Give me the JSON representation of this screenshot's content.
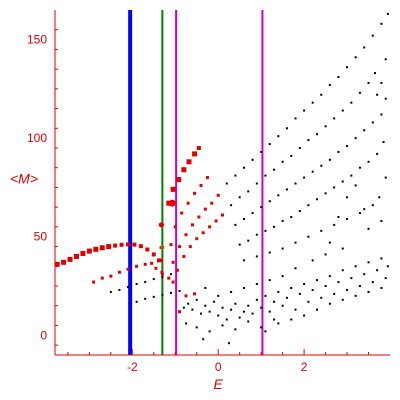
{
  "chart_data": {
    "type": "scatter",
    "xlabel": "E",
    "ylabel": "<M>",
    "xlim": [
      -3.8,
      4.0
    ],
    "ylim": [
      -10,
      165
    ],
    "x_ticks": [
      -2,
      0,
      2
    ],
    "x_tick_labels": [
      "-2",
      "0",
      "2"
    ],
    "y_ticks": [
      0,
      50,
      100,
      150
    ],
    "y_tick_labels": [
      "0",
      "50",
      "100",
      "150"
    ],
    "grid": false,
    "colors": {
      "axis": "#e00000",
      "red_points": "#e00000",
      "black_points": "#000000",
      "blue_line": "#0000ff",
      "green_line": "#008000",
      "magenta_line": "#cc00cc"
    },
    "vertical_lines": [
      {
        "x": -2.05,
        "color": "#0000ff",
        "width": 4
      },
      {
        "x": -1.3,
        "color": "#008000",
        "width": 2
      },
      {
        "x": -0.98,
        "color": "#cc00cc",
        "width": 2
      },
      {
        "x": 1.03,
        "color": "#cc00cc",
        "width": 2
      }
    ],
    "red_points": [
      [
        -3.75,
        36,
        5
      ],
      [
        -3.6,
        37,
        5
      ],
      [
        -3.45,
        38.5,
        5
      ],
      [
        -3.3,
        40,
        5
      ],
      [
        -3.15,
        41.5,
        5
      ],
      [
        -3.0,
        42.7,
        5
      ],
      [
        -2.85,
        43.6,
        5
      ],
      [
        -2.7,
        44.4,
        5
      ],
      [
        -2.55,
        45.0,
        5
      ],
      [
        -2.4,
        45.5,
        4
      ],
      [
        -2.25,
        45.9,
        4
      ],
      [
        -2.1,
        46.1,
        4
      ],
      [
        -1.95,
        46.0,
        4
      ],
      [
        -1.8,
        45.2,
        4
      ],
      [
        -1.65,
        43.5,
        4
      ],
      [
        -1.5,
        41.0,
        4
      ],
      [
        -1.38,
        38.0,
        4
      ],
      [
        -1.33,
        44.5,
        3
      ],
      [
        -1.32,
        38,
        3
      ],
      [
        -1.31,
        32,
        3
      ],
      [
        -1.35,
        56,
        3
      ],
      [
        -1.15,
        67,
        5
      ],
      [
        -1.05,
        74,
        5
      ],
      [
        -0.92,
        79,
        5
      ],
      [
        -0.8,
        84,
        5
      ],
      [
        -0.68,
        88,
        5
      ],
      [
        -0.55,
        92,
        5
      ],
      [
        -0.45,
        95,
        4
      ],
      [
        -1.1,
        46,
        3
      ],
      [
        -1.0,
        55,
        3
      ],
      [
        -0.85,
        62,
        3
      ],
      [
        -0.7,
        67,
        3
      ],
      [
        -0.55,
        72,
        3
      ],
      [
        -0.4,
        76,
        3
      ],
      [
        -0.25,
        80,
        3
      ],
      [
        -1.05,
        37,
        3
      ],
      [
        -0.9,
        45,
        3
      ],
      [
        -0.75,
        51,
        3
      ],
      [
        -0.6,
        56,
        3
      ],
      [
        -0.45,
        60,
        3
      ],
      [
        -0.3,
        64,
        3
      ],
      [
        -0.15,
        67,
        3
      ],
      [
        0.0,
        71,
        3
      ],
      [
        -0.95,
        33,
        3
      ],
      [
        -0.8,
        40,
        3
      ],
      [
        -0.65,
        45,
        3
      ],
      [
        -0.5,
        49,
        3
      ],
      [
        -0.35,
        52,
        3
      ],
      [
        -0.2,
        55,
        3
      ],
      [
        -0.05,
        58,
        3
      ],
      [
        0.1,
        61,
        3
      ],
      [
        -2.9,
        27,
        3
      ],
      [
        -2.7,
        29,
        3
      ],
      [
        -2.5,
        30,
        3
      ],
      [
        -2.3,
        32,
        3
      ],
      [
        -2.1,
        33.5,
        3
      ],
      [
        -1.9,
        35,
        3
      ],
      [
        -1.7,
        36,
        3
      ],
      [
        -1.55,
        36.5,
        3
      ],
      [
        -1.45,
        34,
        3
      ],
      [
        -1.3,
        31,
        3
      ],
      [
        -1.15,
        29,
        3
      ],
      [
        -1.05,
        27,
        3
      ],
      [
        -0.75,
        20,
        3
      ],
      [
        -0.55,
        21,
        3
      ],
      [
        -0.9,
        12,
        3
      ]
    ],
    "big_markers": [
      [
        -1.07,
        67,
        "#e00000",
        7
      ],
      [
        -1.32,
        56,
        "#e00000",
        5
      ],
      [
        -1.3,
        44.5,
        "#996600",
        4
      ]
    ],
    "black_points": [
      [
        -2.5,
        22
      ],
      [
        -2.3,
        23
      ],
      [
        -2.1,
        24.5
      ],
      [
        -1.9,
        26
      ],
      [
        -1.7,
        27
      ],
      [
        -1.5,
        28.5
      ],
      [
        -1.3,
        29.5
      ],
      [
        -1.1,
        31
      ],
      [
        -1.9,
        17
      ],
      [
        -1.7,
        18.5
      ],
      [
        -1.5,
        19.5
      ],
      [
        -1.3,
        20.5
      ],
      [
        -1.1,
        21.5
      ],
      [
        -0.9,
        22.5
      ],
      [
        0.2,
        77
      ],
      [
        0.4,
        81
      ],
      [
        0.6,
        85
      ],
      [
        0.8,
        89
      ],
      [
        1.0,
        93
      ],
      [
        1.2,
        97
      ],
      [
        1.4,
        101
      ],
      [
        1.6,
        105
      ],
      [
        1.8,
        110
      ],
      [
        2.0,
        114
      ],
      [
        2.2,
        118
      ],
      [
        2.4,
        122
      ],
      [
        2.6,
        127
      ],
      [
        2.8,
        131
      ],
      [
        3.0,
        136
      ],
      [
        3.2,
        141
      ],
      [
        3.4,
        146
      ],
      [
        3.6,
        152
      ],
      [
        3.8,
        158
      ],
      [
        3.95,
        163
      ],
      [
        0.3,
        66
      ],
      [
        0.5,
        70
      ],
      [
        0.7,
        73
      ],
      [
        0.9,
        77
      ],
      [
        1.1,
        81
      ],
      [
        1.3,
        84
      ],
      [
        1.5,
        88
      ],
      [
        1.7,
        91
      ],
      [
        1.9,
        95
      ],
      [
        2.1,
        99
      ],
      [
        2.3,
        102
      ],
      [
        2.5,
        106
      ],
      [
        2.7,
        110
      ],
      [
        2.9,
        114
      ],
      [
        3.1,
        118
      ],
      [
        3.3,
        123
      ],
      [
        3.5,
        128
      ],
      [
        3.65,
        133
      ],
      [
        0.4,
        56
      ],
      [
        0.6,
        59
      ],
      [
        0.8,
        62
      ],
      [
        1.0,
        65
      ],
      [
        1.2,
        68
      ],
      [
        1.4,
        71
      ],
      [
        1.6,
        74
      ],
      [
        1.8,
        77
      ],
      [
        2.0,
        80
      ],
      [
        2.2,
        83
      ],
      [
        2.4,
        86
      ],
      [
        2.6,
        89
      ],
      [
        2.8,
        93
      ],
      [
        3.0,
        96
      ],
      [
        3.2,
        100
      ],
      [
        3.4,
        104
      ],
      [
        3.6,
        108
      ],
      [
        3.8,
        112
      ],
      [
        0.5,
        46
      ],
      [
        0.7,
        48
      ],
      [
        0.9,
        51
      ],
      [
        1.1,
        53
      ],
      [
        1.3,
        55
      ],
      [
        1.5,
        58
      ],
      [
        1.7,
        60
      ],
      [
        1.9,
        63
      ],
      [
        2.1,
        66
      ],
      [
        2.3,
        69
      ],
      [
        2.5,
        72
      ],
      [
        2.7,
        75
      ],
      [
        2.9,
        78
      ],
      [
        3.1,
        81
      ],
      [
        3.3,
        85
      ],
      [
        3.5,
        88
      ],
      [
        3.7,
        92
      ],
      [
        0.6,
        38
      ],
      [
        0.9,
        40
      ],
      [
        1.2,
        42
      ],
      [
        1.5,
        44
      ],
      [
        1.8,
        47
      ],
      [
        2.1,
        50
      ],
      [
        2.4,
        53
      ],
      [
        2.7,
        56
      ],
      [
        3.0,
        59
      ],
      [
        3.3,
        62
      ],
      [
        3.6,
        66
      ],
      [
        3.9,
        140
      ],
      [
        3.9,
        120
      ],
      [
        3.8,
        128
      ],
      [
        3.7,
        122
      ],
      [
        3.85,
        98
      ],
      [
        3.9,
        80
      ],
      [
        3.75,
        70
      ],
      [
        2.8,
        60
      ],
      [
        3.0,
        70
      ],
      [
        3.2,
        76
      ],
      [
        3.4,
        64
      ],
      [
        2.6,
        47
      ],
      [
        2.9,
        44
      ],
      [
        3.5,
        54
      ],
      [
        3.8,
        58
      ],
      [
        -0.8,
        14
      ],
      [
        -0.7,
        16
      ],
      [
        -0.6,
        13
      ],
      [
        -0.5,
        18
      ],
      [
        -0.4,
        11
      ],
      [
        -0.3,
        15
      ],
      [
        -0.2,
        12
      ],
      [
        -0.1,
        17
      ],
      [
        0.0,
        10
      ],
      [
        0.1,
        14
      ],
      [
        0.2,
        8
      ],
      [
        0.3,
        13
      ],
      [
        0.4,
        16
      ],
      [
        0.5,
        9
      ],
      [
        0.6,
        12
      ],
      [
        0.7,
        15
      ],
      [
        0.8,
        11
      ],
      [
        0.9,
        18
      ],
      [
        1.0,
        14
      ],
      [
        1.1,
        20
      ],
      [
        1.2,
        12
      ],
      [
        1.3,
        17
      ],
      [
        1.4,
        22
      ],
      [
        1.5,
        15
      ],
      [
        1.6,
        19
      ],
      [
        1.7,
        24
      ],
      [
        1.8,
        13
      ],
      [
        1.9,
        21
      ],
      [
        2.0,
        26
      ],
      [
        2.1,
        17
      ],
      [
        2.2,
        23
      ],
      [
        2.3,
        28
      ],
      [
        2.4,
        19
      ],
      [
        2.5,
        25
      ],
      [
        2.6,
        30
      ],
      [
        2.7,
        21
      ],
      [
        2.8,
        27
      ],
      [
        2.9,
        33
      ],
      [
        3.0,
        23
      ],
      [
        3.1,
        29
      ],
      [
        3.2,
        35
      ],
      [
        3.3,
        25
      ],
      [
        3.4,
        31
      ],
      [
        3.5,
        37
      ],
      [
        3.6,
        27
      ],
      [
        3.7,
        33
      ],
      [
        3.8,
        39
      ],
      [
        3.9,
        29
      ],
      [
        3.95,
        35
      ],
      [
        -0.75,
        6
      ],
      [
        -0.5,
        4
      ],
      [
        -0.2,
        2
      ],
      [
        0.1,
        5
      ],
      [
        0.4,
        3
      ],
      [
        0.7,
        7
      ],
      [
        1.0,
        4
      ],
      [
        1.3,
        8
      ],
      [
        0.25,
        -4
      ],
      [
        -0.35,
        -2
      ],
      [
        1.5,
        30
      ],
      [
        1.8,
        34
      ],
      [
        2.2,
        38
      ],
      [
        2.5,
        41
      ],
      [
        1.2,
        28
      ],
      [
        0.9,
        26
      ],
      [
        0.6,
        24
      ],
      [
        0.3,
        22
      ],
      [
        0.0,
        20
      ],
      [
        -0.3,
        24
      ],
      [
        2.0,
        10
      ],
      [
        2.3,
        13
      ],
      [
        2.6,
        16
      ],
      [
        2.9,
        18
      ],
      [
        3.2,
        20
      ],
      [
        3.5,
        22
      ],
      [
        3.8,
        24
      ],
      [
        1.7,
        8
      ],
      [
        1.4,
        6
      ],
      [
        1.1,
        2
      ]
    ]
  }
}
